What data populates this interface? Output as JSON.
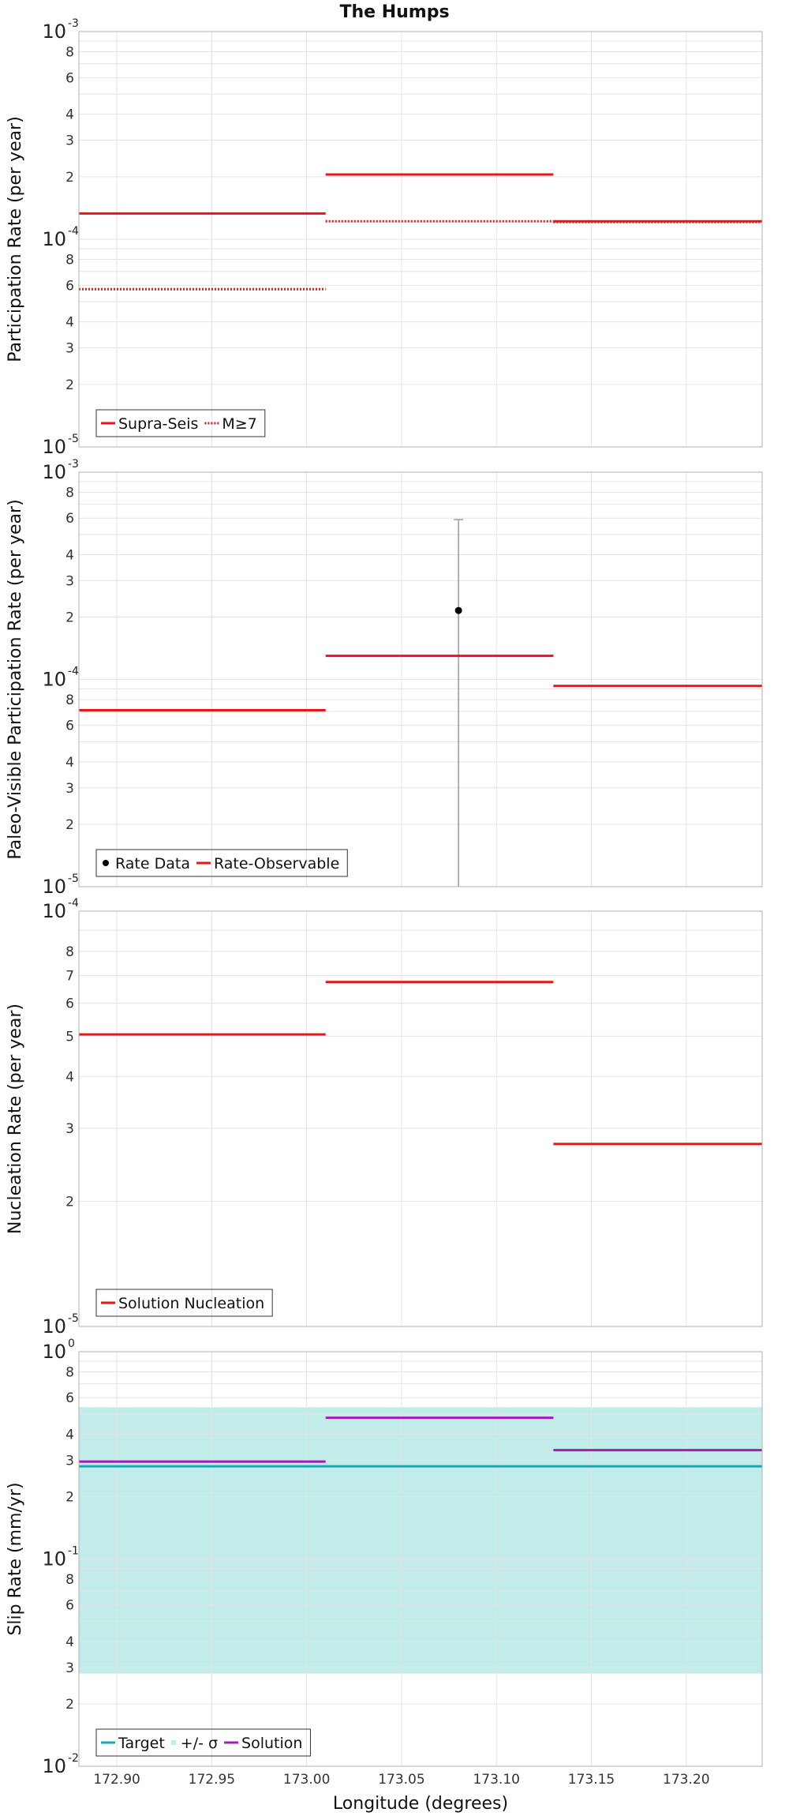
{
  "chart_data": {
    "type": "line",
    "title": "The Humps",
    "xlabel": "Longitude (degrees)",
    "xlim": [
      172.88,
      173.24
    ],
    "x_ticks": [
      "172.90",
      "172.95",
      "173.00",
      "173.05",
      "173.10",
      "173.15",
      "173.20"
    ],
    "x_tick_values": [
      172.9,
      172.95,
      173.0,
      173.05,
      173.1,
      173.15,
      173.2
    ],
    "panels": [
      {
        "ylabel": "Participation Rate (per year)",
        "scale": "log",
        "ylim": [
          1e-05,
          0.001
        ],
        "legend": "bottom-left",
        "series": [
          {
            "name": "Supra-Seis",
            "style": "solid",
            "color": "#e8161b",
            "segments": [
              {
                "x": [
                  172.88,
                  173.01
                ],
                "y": 0.000133
              },
              {
                "x": [
                  173.01,
                  173.13
                ],
                "y": 0.000205
              },
              {
                "x": [
                  173.13,
                  173.24
                ],
                "y": 0.000122
              }
            ]
          },
          {
            "name": "M≥7",
            "style": "dotted",
            "color": "#e8161b",
            "segments": [
              {
                "x": [
                  172.88,
                  173.01
                ],
                "y": 5.75e-05
              },
              {
                "x": [
                  173.01,
                  173.13
                ],
                "y": 0.000122
              },
              {
                "x": [
                  173.13,
                  173.24
                ],
                "y": 0.000121
              }
            ]
          }
        ]
      },
      {
        "ylabel": "Paleo-Visible Participation Rate (per year)",
        "scale": "log",
        "ylim": [
          1e-05,
          0.001
        ],
        "legend": "bottom-left",
        "points": [
          {
            "name": "Rate Data",
            "x": 173.08,
            "y": 0.000215,
            "ylow": 1e-05,
            "yhigh": 0.00059,
            "color": "#000000"
          }
        ],
        "series": [
          {
            "name": "Rate-Observable",
            "style": "solid",
            "color": "#e8161b",
            "segments": [
              {
                "x": [
                  172.88,
                  173.01
                ],
                "y": 7.1e-05
              },
              {
                "x": [
                  173.01,
                  173.13
                ],
                "y": 0.00013
              },
              {
                "x": [
                  173.13,
                  173.24
                ],
                "y": 9.3e-05
              }
            ]
          }
        ]
      },
      {
        "ylabel": "Nucleation Rate (per year)",
        "scale": "log",
        "ylim": [
          1e-05,
          0.0001
        ],
        "legend": "bottom-left",
        "series": [
          {
            "name": "Solution Nucleation",
            "style": "solid",
            "color": "#e8161b",
            "segments": [
              {
                "x": [
                  172.88,
                  173.01
                ],
                "y": 5.05e-05
              },
              {
                "x": [
                  173.01,
                  173.13
                ],
                "y": 6.75e-05
              },
              {
                "x": [
                  173.13,
                  173.24
                ],
                "y": 2.75e-05
              }
            ]
          }
        ]
      },
      {
        "ylabel": "Slip Rate (mm/yr)",
        "scale": "log",
        "ylim": [
          0.01,
          1
        ],
        "legend": "bottom-left",
        "band": {
          "name": "+/- σ",
          "ylow": 0.028,
          "yhigh": 0.54,
          "color": "#c2ecea"
        },
        "series": [
          {
            "name": "Target",
            "style": "solid",
            "color": "#1aa9b0",
            "segments": [
              {
                "x": [
                  172.88,
                  173.24
                ],
                "y": 0.28
              }
            ]
          },
          {
            "name": "Solution",
            "style": "solid",
            "color": "#a21cb8",
            "segments": [
              {
                "x": [
                  172.88,
                  173.01
                ],
                "y": 0.295
              },
              {
                "x": [
                  173.01,
                  173.13
                ],
                "y": 0.48
              },
              {
                "x": [
                  173.13,
                  173.24
                ],
                "y": 0.335
              }
            ]
          }
        ]
      }
    ]
  }
}
